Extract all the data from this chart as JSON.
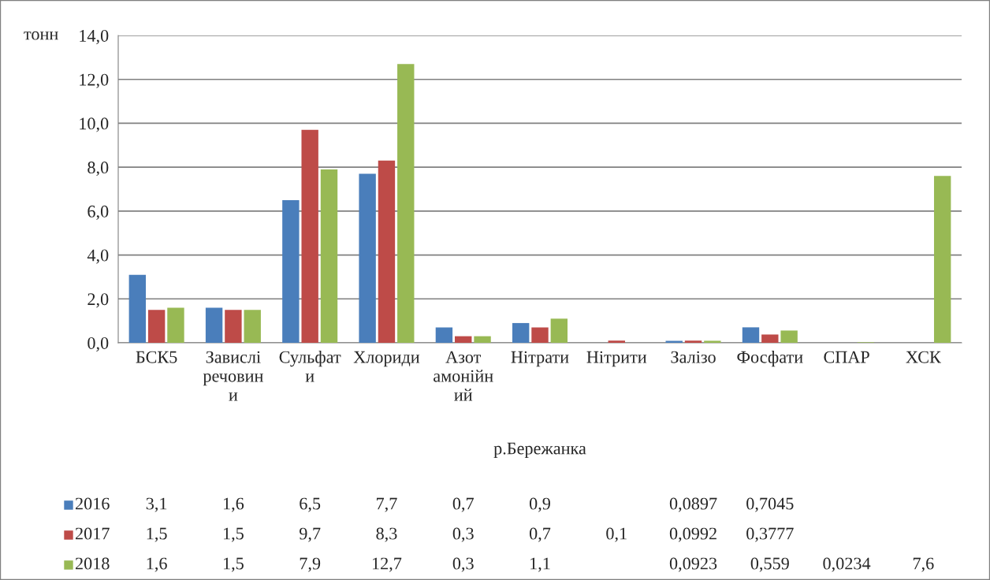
{
  "chart_data": {
    "type": "bar",
    "ylabel": "тонн",
    "xlabel": "р.Бережанка",
    "categories": [
      "БСК5",
      "Завислі речовини",
      "Сульфати",
      "Хлориди",
      "Азот амонійний",
      "Нітрати",
      "Нітрити",
      "Залізо",
      "Фосфати",
      "СПАР",
      "ХСК"
    ],
    "series": [
      {
        "name": "2016",
        "color": "#4a7ebb",
        "values": [
          3.1,
          1.6,
          6.5,
          7.7,
          0.7,
          0.9,
          null,
          0.0897,
          0.7045,
          null,
          null
        ],
        "value_labels": [
          "3,1",
          "1,6",
          "6,5",
          "7,7",
          "0,7",
          "0,9",
          null,
          "0,0897",
          "0,7045",
          null,
          null
        ]
      },
      {
        "name": "2017",
        "color": "#be4b48",
        "values": [
          1.5,
          1.5,
          9.7,
          8.3,
          0.3,
          0.7,
          0.1,
          0.0992,
          0.3777,
          null,
          null
        ],
        "value_labels": [
          "1,5",
          "1,5",
          "9,7",
          "8,3",
          "0,3",
          "0,7",
          "0,1",
          "0,0992",
          "0,3777",
          null,
          null
        ]
      },
      {
        "name": "2018",
        "color": "#98b954",
        "values": [
          1.6,
          1.5,
          7.9,
          12.7,
          0.3,
          1.1,
          null,
          0.0923,
          0.559,
          0.0234,
          7.6
        ],
        "value_labels": [
          "1,6",
          "1,5",
          "7,9",
          "12,7",
          "0,3",
          "1,1",
          null,
          "0,0923",
          "0,559",
          "0,0234",
          "7,6"
        ]
      }
    ],
    "ylim": [
      0,
      14
    ],
    "yticks": [
      {
        "value": 0,
        "label": "0,0"
      },
      {
        "value": 2,
        "label": "2,0"
      },
      {
        "value": 4,
        "label": "4,0"
      },
      {
        "value": 6,
        "label": "6,0"
      },
      {
        "value": 8,
        "label": "8,0"
      },
      {
        "value": 10,
        "label": "10,0"
      },
      {
        "value": 12,
        "label": "12,0"
      },
      {
        "value": 14,
        "label": "14,0"
      }
    ],
    "grid": "y",
    "legend": "bottom"
  }
}
